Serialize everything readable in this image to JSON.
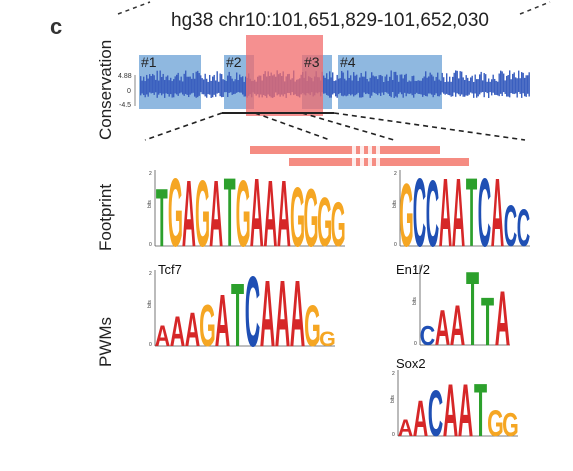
{
  "figure": {
    "panel_letter": "c",
    "region": "hg38 chr10:101,651,829-101,652,030"
  },
  "conservation": {
    "label": "Conservation",
    "ticks": [
      "4.88",
      "0",
      "-4.5"
    ],
    "boxes": [
      "#1",
      "#2",
      "#3",
      "#4"
    ],
    "colors": {
      "box": "#8fb8e0",
      "signal": "#3a5fbf",
      "highlight": "#f26b6b"
    }
  },
  "footprint": {
    "label": "Footprint",
    "logo_left": {
      "letters": "TGAGATGAAAGGGG",
      "positions": 14
    },
    "logo_right": {
      "letters": "GCCAATCACC",
      "positions": 10
    }
  },
  "pwms": {
    "label": "PWMs",
    "motifs": [
      {
        "name": "Tcf7",
        "letters": "AAAGATCAAAGG"
      },
      {
        "name": "En1/2",
        "letters": "CAATTA"
      },
      {
        "name": "Sox2",
        "letters": "AACAATGG"
      }
    ]
  },
  "logo_axis": {
    "top": "2",
    "bottom": "0",
    "unit": "bits"
  }
}
